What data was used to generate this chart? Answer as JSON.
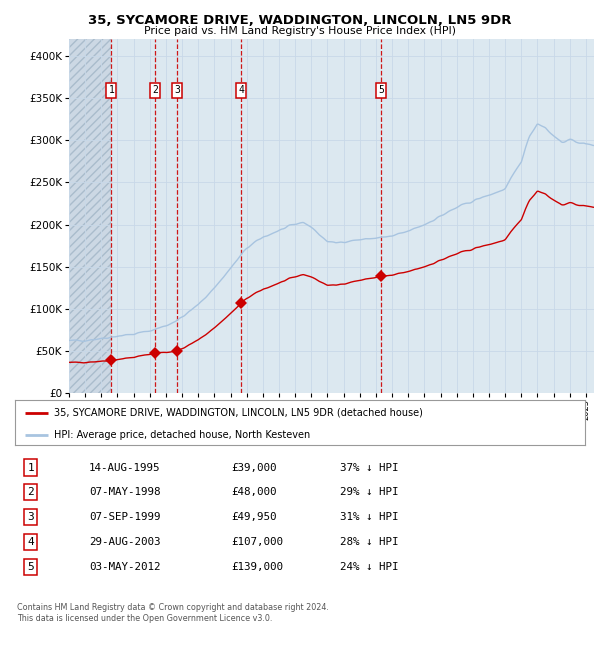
{
  "title": "35, SYCAMORE DRIVE, WADDINGTON, LINCOLN, LN5 9DR",
  "subtitle": "Price paid vs. HM Land Registry's House Price Index (HPI)",
  "sale_dates_x": [
    1995.62,
    1998.35,
    1999.68,
    2003.66,
    2012.34
  ],
  "sale_prices_y": [
    39000,
    48000,
    49950,
    107000,
    139000
  ],
  "sale_labels": [
    "1",
    "2",
    "3",
    "4",
    "5"
  ],
  "legend_line1": "35, SYCAMORE DRIVE, WADDINGTON, LINCOLN, LN5 9DR (detached house)",
  "legend_line2": "HPI: Average price, detached house, North Kesteven",
  "table_data": [
    [
      "1",
      "14-AUG-1995",
      "£39,000",
      "37% ↓ HPI"
    ],
    [
      "2",
      "07-MAY-1998",
      "£48,000",
      "29% ↓ HPI"
    ],
    [
      "3",
      "07-SEP-1999",
      "£49,950",
      "31% ↓ HPI"
    ],
    [
      "4",
      "29-AUG-2003",
      "£107,000",
      "28% ↓ HPI"
    ],
    [
      "5",
      "03-MAY-2012",
      "£139,000",
      "24% ↓ HPI"
    ]
  ],
  "footer": "Contains HM Land Registry data © Crown copyright and database right 2024.\nThis data is licensed under the Open Government Licence v3.0.",
  "hpi_color": "#a8c4e0",
  "price_color": "#cc0000",
  "marker_color": "#cc0000",
  "vline_color": "#cc0000",
  "grid_color": "#c8d8e8",
  "bg_color": "#dce8f0",
  "ylim": [
    0,
    420000
  ],
  "xlim_start": 1993.0,
  "xlim_end": 2025.5,
  "hpi_base_points_x": [
    1993.0,
    1994.0,
    1995.0,
    1996.0,
    1997.0,
    1998.0,
    1999.0,
    2000.0,
    2001.0,
    2002.0,
    2003.0,
    2004.0,
    2005.0,
    2006.0,
    2007.0,
    2007.5,
    2008.0,
    2008.5,
    2009.0,
    2009.5,
    2010.0,
    2011.0,
    2012.0,
    2013.0,
    2014.0,
    2015.0,
    2016.0,
    2017.0,
    2018.0,
    2019.0,
    2020.0,
    2021.0,
    2021.5,
    2022.0,
    2022.5,
    2023.0,
    2023.5,
    2024.0,
    2024.5,
    2025.0
  ],
  "hpi_base_points_y": [
    62000,
    63000,
    65000,
    68000,
    70000,
    74000,
    80000,
    90000,
    105000,
    125000,
    148000,
    172000,
    185000,
    193000,
    200000,
    203000,
    197000,
    188000,
    180000,
    178000,
    180000,
    182000,
    184000,
    186000,
    192000,
    200000,
    210000,
    220000,
    228000,
    235000,
    242000,
    275000,
    305000,
    320000,
    315000,
    305000,
    298000,
    300000,
    298000,
    295000
  ],
  "n_points": 500
}
